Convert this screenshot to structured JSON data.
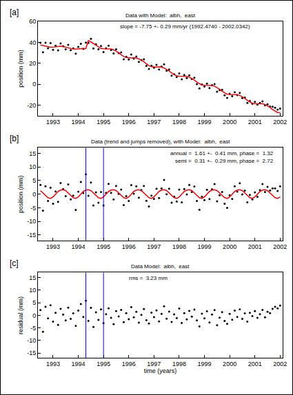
{
  "chart_data": [
    {
      "type": "scatter",
      "label": "[a]",
      "title": "Data with Model:  albh,  east",
      "ylabel": "position (mm)",
      "annotations": [
        "slope = -7.75 +- 0.29 mm/yr (1992.4740 - 2002.0342)"
      ],
      "grid": false,
      "xlim": [
        1992.4,
        2002.1
      ],
      "xticks": [
        1993,
        1994,
        1995,
        1996,
        1997,
        1998,
        1999,
        2000,
        2001,
        2002
      ],
      "ylim": [
        -30,
        60
      ],
      "yticks": [
        -20,
        0,
        20,
        40,
        60
      ],
      "x": [
        1992.5,
        1992.6,
        1992.7,
        1992.8,
        1992.9,
        1993.0,
        1993.1,
        1993.2,
        1993.3,
        1993.4,
        1993.5,
        1993.6,
        1993.7,
        1993.8,
        1993.9,
        1994.0,
        1994.1,
        1994.2,
        1994.3,
        1994.4,
        1994.5,
        1994.6,
        1994.7,
        1994.8,
        1994.9,
        1995.0,
        1995.1,
        1995.2,
        1995.3,
        1995.4,
        1995.5,
        1995.6,
        1995.7,
        1995.8,
        1995.9,
        1996.0,
        1996.1,
        1996.2,
        1996.3,
        1996.4,
        1996.5,
        1996.6,
        1996.7,
        1996.8,
        1996.9,
        1997.0,
        1997.1,
        1997.2,
        1997.3,
        1997.4,
        1997.5,
        1997.6,
        1997.7,
        1997.8,
        1997.9,
        1998.0,
        1998.1,
        1998.2,
        1998.3,
        1998.4,
        1998.5,
        1998.6,
        1998.7,
        1998.8,
        1998.9,
        1999.0,
        1999.1,
        1999.2,
        1999.3,
        1999.4,
        1999.5,
        1999.6,
        1999.7,
        1999.8,
        1999.9,
        2000.0,
        2000.1,
        2000.2,
        2000.3,
        2000.4,
        2000.5,
        2000.6,
        2000.7,
        2000.8,
        2000.9,
        2001.0,
        2001.1,
        2001.2,
        2001.3,
        2001.4,
        2001.5,
        2001.6,
        2001.7,
        2001.8,
        2001.9,
        2002.0
      ],
      "series": [
        {
          "type": "scatter",
          "marker": "dot",
          "color": "#000000",
          "values": [
            39.6,
            30.5,
            39.6,
            34.4,
            39.3,
            32.9,
            36.8,
            32.4,
            38.9,
            36.3,
            33.3,
            37.7,
            32.6,
            34.4,
            29.3,
            35.7,
            38.6,
            33.6,
            39.8,
            39.4,
            43.4,
            34.2,
            38.1,
            33.4,
            36.5,
            30.7,
            34.4,
            36.8,
            32.7,
            29.4,
            33.4,
            29.7,
            30.4,
            23.8,
            26.3,
            23.6,
            28.5,
            24.5,
            26.4,
            21.3,
            23.2,
            23.9,
            17.6,
            14.6,
            17.8,
            15.7,
            18.5,
            14.2,
            16.9,
            19.1,
            13.0,
            14.2,
            8.2,
            9.5,
            6.9,
            10.4,
            4.8,
            8.8,
            6.0,
            8.6,
            5.1,
            6.3,
            0.1,
            -4.0,
            -0.1,
            -2.2,
            0.7,
            -3.6,
            -0.8,
            0.2,
            -7.0,
            -5.6,
            -5.3,
            -10.5,
            -12.9,
            -9.1,
            -11.3,
            -7.6,
            -10.4,
            -8.2,
            -13.2,
            -12.6,
            -17.8,
            -16.0,
            -18.5,
            -16.7,
            -19.3,
            -17.7,
            -16.3,
            -20.1,
            -19.1,
            -21.2,
            -21.4,
            -22.3,
            -24.1,
            -23.2
          ]
        },
        {
          "type": "line",
          "line_style": "solid",
          "color": "#ff0000",
          "values": [
            37.5,
            37.0,
            36.2,
            35.6,
            35.3,
            35.4,
            35.8,
            36.2,
            36.3,
            36.0,
            35.3,
            34.6,
            34.0,
            33.6,
            33.5,
            33.8,
            34.1,
            34.2,
            34.0,
            41.6,
            40.4,
            38.8,
            36.9,
            35.2,
            34.1,
            33.8,
            33.9,
            34.0,
            33.7,
            32.9,
            31.7,
            30.1,
            28.2,
            26.5,
            25.4,
            25.1,
            25.2,
            25.3,
            25.0,
            24.2,
            23.0,
            21.4,
            19.5,
            17.8,
            16.7,
            16.4,
            16.5,
            16.6,
            16.3,
            15.5,
            14.3,
            12.7,
            10.8,
            9.1,
            8.0,
            7.7,
            7.8,
            7.9,
            7.6,
            6.8,
            5.6,
            4.0,
            2.1,
            0.4,
            -0.8,
            -1.0,
            -0.9,
            -0.8,
            -1.1,
            -1.9,
            -3.1,
            -4.7,
            -6.6,
            -8.3,
            -9.5,
            -9.7,
            -9.6,
            -9.5,
            -9.8,
            -10.6,
            -11.8,
            -13.4,
            -15.3,
            -17.0,
            -18.2,
            -18.4,
            -18.3,
            -18.2,
            -18.5,
            -19.3,
            -20.5,
            -22.1,
            -24.0,
            -25.7,
            -26.9,
            -27.1
          ]
        }
      ]
    },
    {
      "type": "scatter",
      "label": "[b]",
      "title": "Data (trend and jumps removed), with Model:  albh,  east",
      "ylabel": "position (mm)",
      "annotations": [
        "annual =  1.61 +-  0.41 mm, phase =  1.32",
        "semi =  0.31 +-  0.29 mm, phase =  2.72"
      ],
      "grid": false,
      "vlines": {
        "x": [
          1994.3,
          1995.0
        ],
        "color": "#0000ff"
      },
      "xlim": [
        1992.4,
        2002.1
      ],
      "xticks": [
        1993,
        1994,
        1995,
        1996,
        1997,
        1998,
        1999,
        2000,
        2001,
        2002
      ],
      "ylim": [
        -17,
        17
      ],
      "yticks": [
        -15,
        -10,
        -5,
        0,
        5,
        10,
        15
      ],
      "x": [
        1992.5,
        1992.6,
        1992.7,
        1992.8,
        1992.9,
        1993.0,
        1993.1,
        1993.2,
        1993.3,
        1993.4,
        1993.5,
        1993.6,
        1993.7,
        1993.8,
        1993.9,
        1994.0,
        1994.1,
        1994.2,
        1994.3,
        1994.4,
        1994.5,
        1994.6,
        1994.7,
        1994.8,
        1994.9,
        1995.0,
        1995.1,
        1995.2,
        1995.3,
        1995.4,
        1995.5,
        1995.6,
        1995.7,
        1995.8,
        1995.9,
        1996.0,
        1996.1,
        1996.2,
        1996.3,
        1996.4,
        1996.5,
        1996.6,
        1996.7,
        1996.8,
        1996.9,
        1997.0,
        1997.1,
        1997.2,
        1997.3,
        1997.4,
        1997.5,
        1997.6,
        1997.7,
        1997.8,
        1997.9,
        1998.0,
        1998.1,
        1998.2,
        1998.3,
        1998.4,
        1998.5,
        1998.6,
        1998.7,
        1998.8,
        1998.9,
        1999.0,
        1999.1,
        1999.2,
        1999.3,
        1999.4,
        1999.5,
        1999.6,
        1999.7,
        1999.8,
        1999.9,
        2000.0,
        2000.1,
        2000.2,
        2000.3,
        2000.4,
        2000.5,
        2000.6,
        2000.7,
        2000.8,
        2000.9,
        2001.0,
        2001.1,
        2001.2,
        2001.3,
        2001.4,
        2001.5,
        2001.6,
        2001.7,
        2001.8,
        2001.9,
        2002.0
      ],
      "series": [
        {
          "type": "scatter",
          "marker": "dot",
          "color": "#000000",
          "values": [
            3.4,
            -6.0,
            2.9,
            -2.5,
            2.4,
            -3.5,
            1.0,
            -2.8,
            4.1,
            1.9,
            -0.7,
            3.6,
            -1.9,
            -0.5,
            -5.8,
            0.9,
            4.5,
            0.4,
            7.3,
            -0.6,
            4.3,
            -4.1,
            0.7,
            -3.1,
            0.8,
            -4.1,
            0.5,
            3.8,
            0.5,
            -1.9,
            3.0,
            0.1,
            1.7,
            -4.0,
            -0.7,
            -2.5,
            3.3,
            0.2,
            2.9,
            -1.3,
            1.5,
            3.0,
            -2.4,
            -4.5,
            -0.5,
            -1.7,
            2.0,
            -1.4,
            2.1,
            5.2,
            0.0,
            2.0,
            -3.1,
            -0.9,
            -2.7,
            1.7,
            -3.0,
            1.9,
            -0.1,
            3.4,
            0.8,
            2.8,
            -2.5,
            -5.7,
            -0.9,
            -2.2,
            1.6,
            -1.8,
            1.8,
            3.7,
            -2.6,
            -0.4,
            0.8,
            -3.5,
            -5.0,
            -0.4,
            -1.7,
            2.9,
            0.9,
            4.0,
            -0.1,
            1.3,
            -3.0,
            -0.3,
            -1.9,
            0.7,
            -1.0,
            1.5,
            3.7,
            0.8,
            2.7,
            1.4,
            2.1,
            2.1,
            1.2,
            2.9
          ]
        },
        {
          "type": "line",
          "line_style": "solid",
          "color": "#ff0000",
          "values": [
            1.3,
            0.5,
            -0.5,
            -1.3,
            -1.6,
            -1.0,
            0.0,
            1.0,
            1.5,
            1.6,
            1.3,
            0.5,
            -0.5,
            -1.3,
            -1.6,
            -1.0,
            0.0,
            1.0,
            1.5,
            1.6,
            1.3,
            0.5,
            -0.5,
            -1.3,
            -1.6,
            -1.0,
            0.0,
            1.0,
            1.5,
            1.6,
            1.3,
            0.5,
            -0.5,
            -1.3,
            -1.6,
            -1.0,
            0.0,
            1.0,
            1.5,
            1.6,
            1.3,
            0.5,
            -0.5,
            -1.3,
            -1.6,
            -1.0,
            0.0,
            1.0,
            1.5,
            1.6,
            1.3,
            0.5,
            -0.5,
            -1.3,
            -1.6,
            -1.0,
            0.0,
            1.0,
            1.5,
            1.6,
            1.3,
            0.5,
            -0.5,
            -1.3,
            -1.6,
            -1.0,
            0.0,
            1.0,
            1.5,
            1.6,
            1.3,
            0.5,
            -0.5,
            -1.3,
            -1.6,
            -1.0,
            0.0,
            1.0,
            1.5,
            1.6,
            1.3,
            0.5,
            -0.5,
            -1.3,
            -1.6,
            -1.0,
            0.0,
            1.0,
            1.5,
            1.6,
            1.3,
            0.5,
            -0.5,
            -1.3,
            -1.6,
            -1.0
          ]
        }
      ]
    },
    {
      "type": "scatter",
      "label": "[c]",
      "title": "Data Model:  albh,  east",
      "ylabel": "residual (mm)",
      "xlabel": "time (years)",
      "annotations": [
        "rms =  3.23 mm"
      ],
      "grid": false,
      "vlines": {
        "x": [
          1994.3,
          1995.0
        ],
        "color": "#0000ff"
      },
      "xlim": [
        1992.4,
        2002.1
      ],
      "xticks": [
        1993,
        1994,
        1995,
        1996,
        1997,
        1998,
        1999,
        2000,
        2001,
        2002
      ],
      "ylim": [
        -17,
        17
      ],
      "yticks": [
        -15,
        -10,
        -5,
        0,
        5,
        10,
        15
      ],
      "x": [
        1992.5,
        1992.6,
        1992.7,
        1992.8,
        1992.9,
        1993.0,
        1993.1,
        1993.2,
        1993.3,
        1993.4,
        1993.5,
        1993.6,
        1993.7,
        1993.8,
        1993.9,
        1994.0,
        1994.1,
        1994.2,
        1994.3,
        1994.4,
        1994.5,
        1994.6,
        1994.7,
        1994.8,
        1994.9,
        1995.0,
        1995.1,
        1995.2,
        1995.3,
        1995.4,
        1995.5,
        1995.6,
        1995.7,
        1995.8,
        1995.9,
        1996.0,
        1996.1,
        1996.2,
        1996.3,
        1996.4,
        1996.5,
        1996.6,
        1996.7,
        1996.8,
        1996.9,
        1997.0,
        1997.1,
        1997.2,
        1997.3,
        1997.4,
        1997.5,
        1997.6,
        1997.7,
        1997.8,
        1997.9,
        1998.0,
        1998.1,
        1998.2,
        1998.3,
        1998.4,
        1998.5,
        1998.6,
        1998.7,
        1998.8,
        1998.9,
        1999.0,
        1999.1,
        1999.2,
        1999.3,
        1999.4,
        1999.5,
        1999.6,
        1999.7,
        1999.8,
        1999.9,
        2000.0,
        2000.1,
        2000.2,
        2000.3,
        2000.4,
        2000.5,
        2000.6,
        2000.7,
        2000.8,
        2000.9,
        2001.0,
        2001.1,
        2001.2,
        2001.3,
        2001.4,
        2001.5,
        2001.6,
        2001.7,
        2001.8,
        2001.9,
        2002.0
      ],
      "series": [
        {
          "type": "scatter",
          "marker": "dot",
          "color": "#000000",
          "values": [
            2.1,
            -6.5,
            3.4,
            -1.2,
            4.0,
            -2.5,
            1.0,
            -3.8,
            2.6,
            0.3,
            -2.0,
            3.1,
            -1.4,
            0.8,
            -4.2,
            1.9,
            4.5,
            -0.6,
            5.8,
            -2.2,
            3.0,
            -4.6,
            1.2,
            -1.8,
            2.4,
            -3.1,
            0.5,
            2.8,
            -1.0,
            -3.5,
            1.7,
            -0.4,
            2.2,
            -2.7,
            0.9,
            -1.5,
            3.3,
            -0.8,
            1.4,
            -2.9,
            0.2,
            2.5,
            -1.9,
            -3.2,
            1.1,
            -0.7,
            2.0,
            -2.4,
            0.6,
            3.6,
            -1.3,
            1.5,
            -2.6,
            0.4,
            -1.1,
            2.7,
            -3.0,
            0.9,
            -1.6,
            1.8,
            -0.5,
            2.3,
            -2.0,
            -4.4,
            0.7,
            -1.2,
            1.6,
            -2.8,
            0.3,
            2.1,
            -3.9,
            -0.9,
            1.3,
            -2.2,
            -3.4,
            0.6,
            -1.7,
            1.9,
            -0.6,
            2.4,
            -1.4,
            0.8,
            -2.5,
            1.0,
            -0.3,
            1.7,
            -1.0,
            0.5,
            2.2,
            -0.8,
            1.4,
            0.9,
            2.6,
            3.4,
            2.8,
            3.9
          ]
        }
      ]
    }
  ]
}
